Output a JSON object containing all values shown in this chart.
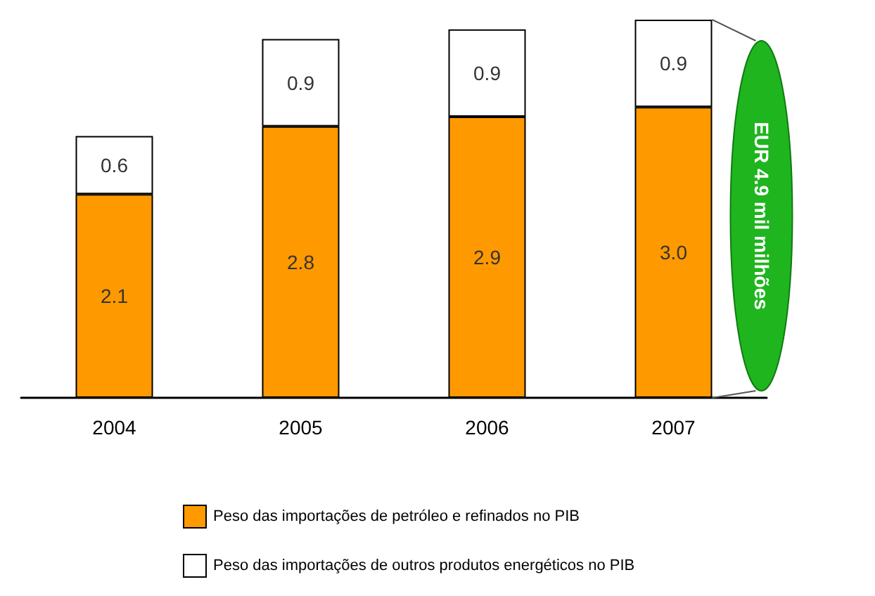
{
  "chart_data": {
    "type": "bar",
    "stacked": true,
    "legend": "bottom",
    "categories": [
      "2004",
      "2005",
      "2006",
      "2007"
    ],
    "series": [
      {
        "name": "Peso das importações de petróleo e refinados no PIB",
        "color": "#ff9900",
        "values": [
          2.1,
          2.8,
          2.9,
          3.0
        ],
        "value_labels": [
          "2.1",
          "2.8",
          "2.9",
          "3.0"
        ]
      },
      {
        "name": "Peso das importações de outros produtos energéticos no PIB",
        "color": "#ffffff",
        "values": [
          0.6,
          0.9,
          0.9,
          0.9
        ],
        "value_labels": [
          "0.6",
          "0.9",
          "0.9",
          "0.9"
        ]
      }
    ],
    "annotations": [
      "EUR 4.9 mil milhões"
    ]
  }
}
